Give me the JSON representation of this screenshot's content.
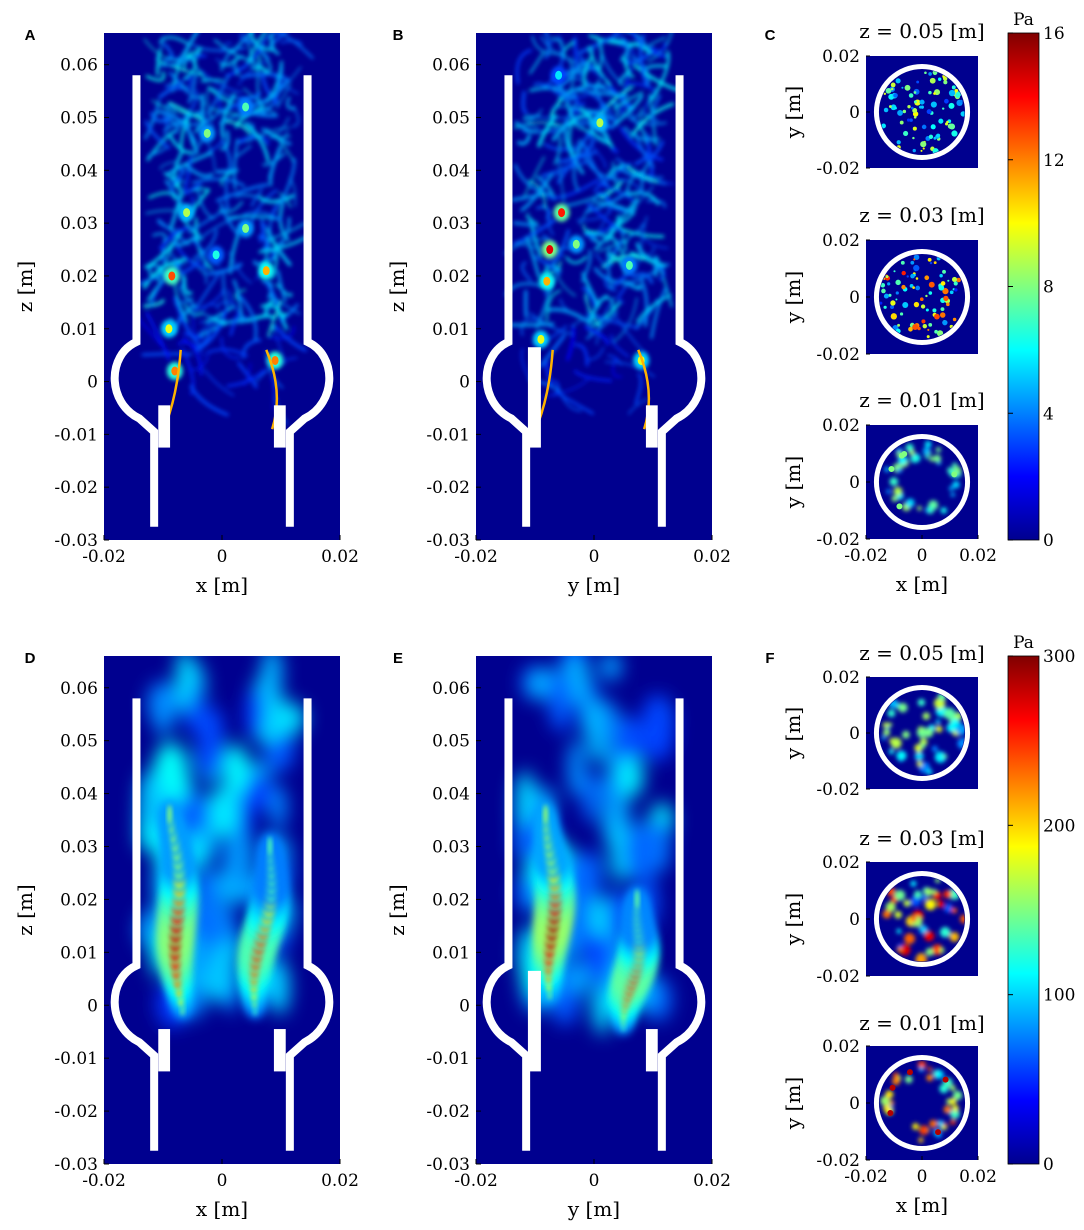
{
  "chart_data": [
    {
      "panel": "A",
      "type": "heatmap",
      "view": "long-x",
      "xlabel": "x [m]",
      "ylabel": "z [m]",
      "xlim": [
        -0.02,
        0.02
      ],
      "ylim": [
        -0.03,
        0.066
      ],
      "xticks": [
        "-0.02",
        "0",
        "0.02"
      ],
      "yticks": [
        "0.06",
        "0.05",
        "0.04",
        "0.03",
        "0.02",
        "0.01",
        "0",
        "-0.01",
        "-0.02",
        "-0.03"
      ],
      "colorbar": 1,
      "peak": 0.85,
      "spots": [
        [
          -0.0085,
          0.02,
          0.8
        ],
        [
          -0.0025,
          0.047,
          0.5
        ],
        [
          0.0075,
          0.021,
          0.7
        ],
        [
          -0.009,
          0.01,
          0.6
        ],
        [
          0.004,
          0.052,
          0.45
        ],
        [
          -0.006,
          0.032,
          0.55
        ],
        [
          0.009,
          0.004,
          0.75
        ],
        [
          -0.008,
          0.002,
          0.75
        ],
        [
          0.004,
          0.029,
          0.5
        ],
        [
          -0.001,
          0.024,
          0.4
        ]
      ]
    },
    {
      "panel": "B",
      "type": "heatmap",
      "view": "long-y",
      "xlabel": "y [m]",
      "ylabel": "z [m]",
      "xlim": [
        -0.02,
        0.02
      ],
      "ylim": [
        -0.03,
        0.066
      ],
      "xticks": [
        "-0.02",
        "0",
        "0.02"
      ],
      "yticks": [
        "0.06",
        "0.05",
        "0.04",
        "0.03",
        "0.02",
        "0.01",
        "0",
        "-0.01",
        "-0.02",
        "-0.03"
      ],
      "colorbar": 1,
      "peak": 0.9,
      "spots": [
        [
          -0.0075,
          0.025,
          0.9
        ],
        [
          -0.0055,
          0.032,
          0.85
        ],
        [
          -0.008,
          0.019,
          0.7
        ],
        [
          0.001,
          0.049,
          0.55
        ],
        [
          -0.009,
          0.008,
          0.6
        ],
        [
          0.008,
          0.004,
          0.6
        ],
        [
          -0.003,
          0.026,
          0.5
        ],
        [
          0.006,
          0.022,
          0.45
        ],
        [
          -0.006,
          0.058,
          0.35
        ]
      ]
    },
    {
      "panel": "C",
      "type": "heatmap",
      "view": "cross",
      "xlabel": "x [m]",
      "ylabel": "y [m]",
      "colorbar": 1,
      "xlim": [
        -0.02,
        0.02
      ],
      "ylim": [
        -0.02,
        0.02
      ],
      "xticks": [
        "-0.02",
        "0",
        "0.02"
      ],
      "yticks": [
        "0.02",
        "0",
        "-0.02"
      ],
      "slices": [
        {
          "title": "z = 0.05 [m]",
          "pattern": "scatter",
          "peak": 0.5
        },
        {
          "title": "z = 0.03 [m]",
          "pattern": "scatter",
          "peak": 0.7
        },
        {
          "title": "z = 0.01 [m]",
          "pattern": "ring",
          "peak": 0.5
        }
      ]
    },
    {
      "panel": "D",
      "type": "heatmap",
      "view": "long-x",
      "xlabel": "x [m]",
      "ylabel": "z [m]",
      "xlim": [
        -0.02,
        0.02
      ],
      "ylim": [
        -0.03,
        0.066
      ],
      "xticks": [
        "-0.02",
        "0",
        "0.02"
      ],
      "yticks": [
        "0.06",
        "0.05",
        "0.04",
        "0.03",
        "0.02",
        "0.01",
        "0",
        "-0.01",
        "-0.02",
        "-0.03"
      ],
      "colorbar": 2,
      "peak": 0.9,
      "plumes": [
        [
          -0.0068,
          0.0,
          -0.0085,
          0.036,
          0.92
        ],
        [
          0.0055,
          0.0,
          0.0085,
          0.03,
          0.82
        ]
      ]
    },
    {
      "panel": "E",
      "type": "heatmap",
      "view": "long-y",
      "xlabel": "y [m]",
      "ylabel": "z [m]",
      "xlim": [
        -0.02,
        0.02
      ],
      "ylim": [
        -0.03,
        0.066
      ],
      "xticks": [
        "-0.02",
        "0",
        "0.02"
      ],
      "yticks": [
        "0.06",
        "0.05",
        "0.04",
        "0.03",
        "0.02",
        "0.01",
        "0",
        "-0.01",
        "-0.02",
        "-0.03"
      ],
      "colorbar": 2,
      "peak": 0.95,
      "plumes": [
        [
          -0.007,
          0.003,
          -0.0075,
          0.036,
          0.95
        ],
        [
          0.0055,
          -0.003,
          0.008,
          0.02,
          0.85
        ]
      ]
    },
    {
      "panel": "F",
      "type": "heatmap",
      "view": "cross",
      "xlabel": "x [m]",
      "ylabel": "y [m]",
      "colorbar": 2,
      "xlim": [
        -0.02,
        0.02
      ],
      "ylim": [
        -0.02,
        0.02
      ],
      "xticks": [
        "-0.02",
        "0",
        "0.02"
      ],
      "yticks": [
        "0.02",
        "0",
        "-0.02"
      ],
      "slices": [
        {
          "title": "z = 0.05 [m]",
          "pattern": "diffuse",
          "peak": 0.4
        },
        {
          "title": "z = 0.03 [m]",
          "pattern": "diffuse",
          "peak": 0.75
        },
        {
          "title": "z = 0.01 [m]",
          "pattern": "ring",
          "peak": 0.95
        }
      ]
    }
  ],
  "colorbars": [
    {
      "unit": "Pa",
      "min": 0,
      "max": 16,
      "ticks": [
        "16",
        "12",
        "8",
        "4",
        "0"
      ]
    },
    {
      "unit": "Pa",
      "min": 0,
      "max": 300,
      "ticks": [
        "300",
        "200",
        "100",
        "0"
      ]
    }
  ],
  "colormap": [
    "#00008f",
    "#0000ff",
    "#0080ff",
    "#00ffff",
    "#80ff80",
    "#ffff00",
    "#ff8000",
    "#ff0000",
    "#800000"
  ],
  "background_color": "#00008f",
  "geometry_color": "#ffffff"
}
